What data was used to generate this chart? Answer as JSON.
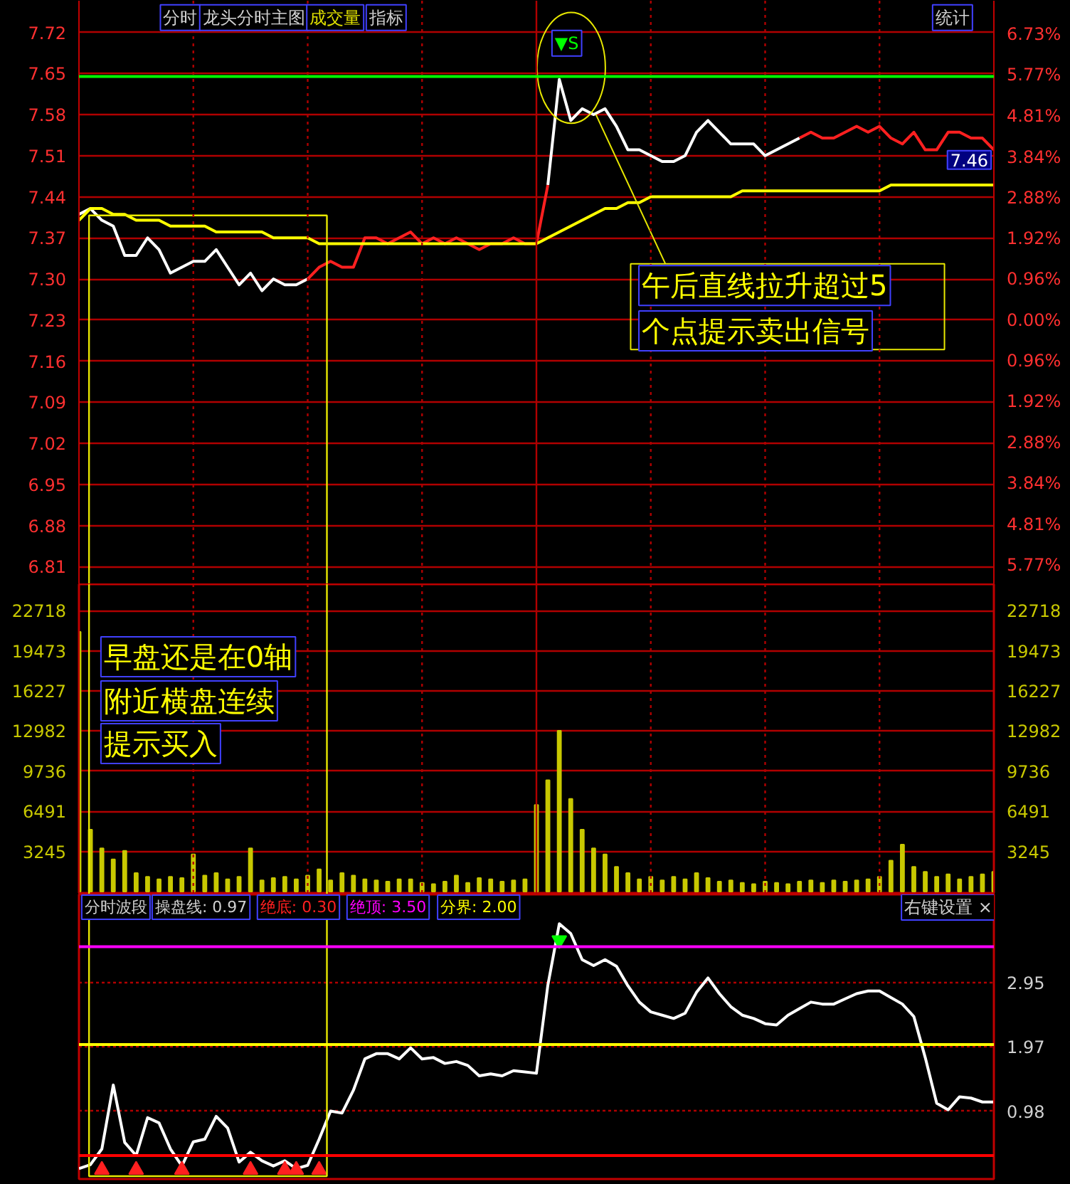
{
  "chart_data": [
    {
      "type": "line",
      "categories": [
        null,
        null,
        null,
        null,
        null,
        null,
        null,
        null,
        null,
        null,
        null,
        null,
        null,
        null,
        null,
        null,
        null,
        null,
        null,
        null,
        null,
        null,
        null,
        null,
        null,
        null,
        null,
        null,
        null,
        null,
        null,
        null,
        null,
        null,
        null,
        null,
        null,
        null,
        null,
        null,
        null,
        null,
        null,
        null,
        null,
        null,
        null,
        null,
        null,
        null,
        null,
        null,
        null,
        null,
        null,
        null,
        null,
        null,
        null,
        null,
        null,
        null,
        null,
        null,
        null,
        null,
        null,
        null,
        null,
        null,
        null,
        null,
        null,
        null,
        null,
        null,
        null,
        null,
        null,
        null,
        null
      ],
      "ylim": [
        6.78,
        7.774
      ],
      "yticks": [
        6.81,
        6.88,
        6.95,
        7.02,
        7.09,
        7.16,
        7.23,
        {
          "value": 7.3,
          "label": "7.30"
        },
        7.37,
        7.44,
        7.51,
        7.58,
        7.65,
        7.72
      ],
      "y2lim": [
        -6.22,
        7.52
      ],
      "y2ticks": [
        {
          "value": -5.77,
          "label": "5.77%"
        },
        {
          "value": -4.81,
          "label": "4.81%"
        },
        {
          "value": -3.84,
          "label": "3.84%"
        },
        {
          "value": -2.88,
          "label": "2.88%"
        },
        {
          "value": -1.92,
          "label": "1.92%"
        },
        {
          "value": -0.96,
          "label": "0.96%"
        },
        {
          "value": 0,
          "label": "0.00%"
        },
        {
          "value": 0.96,
          "label": "0.96%"
        },
        {
          "value": 1.92,
          "label": "1.92%"
        },
        {
          "value": 2.88,
          "label": "2.88%"
        },
        {
          "value": 3.84,
          "label": "3.84%"
        },
        {
          "value": 4.81,
          "label": "4.81%"
        },
        {
          "value": 5.77,
          "label": "5.77%"
        },
        {
          "value": 6.73,
          "label": "6.73%"
        }
      ],
      "tick_labels": "y",
      "grid": true,
      "series": [
        {
          "color": "#ffffff",
          "values": [
            7.41,
            7.42,
            7.4,
            7.39,
            7.34,
            7.34,
            7.37,
            7.35,
            7.31,
            7.32,
            7.33,
            7.33,
            7.35,
            7.32,
            7.29,
            7.31,
            7.28,
            7.3,
            7.29,
            7.29,
            7.3,
            null,
            null,
            null,
            null,
            null,
            null,
            null,
            null,
            null,
            null,
            null,
            null,
            null,
            null,
            null,
            null,
            null,
            null,
            null,
            null,
            7.46,
            7.64,
            7.57,
            7.59,
            7.58,
            7.59,
            7.56,
            7.52,
            7.52,
            7.51,
            7.5,
            7.5,
            7.51,
            7.55,
            7.57,
            7.55,
            7.53,
            7.53,
            7.53,
            7.51,
            7.52,
            7.53,
            7.54,
            null,
            null,
            null,
            null,
            null,
            null,
            null,
            null,
            null,
            null,
            null,
            null,
            null,
            null,
            null,
            null,
            null
          ]
        },
        {
          "color": "#ff2020",
          "values": [
            null,
            null,
            null,
            null,
            null,
            null,
            null,
            null,
            null,
            null,
            null,
            null,
            null,
            null,
            null,
            null,
            null,
            null,
            null,
            null,
            7.3,
            7.32,
            7.33,
            7.32,
            7.32,
            7.37,
            7.37,
            7.36,
            7.37,
            7.38,
            7.36,
            7.37,
            7.36,
            7.37,
            7.36,
            7.35,
            7.36,
            7.36,
            7.37,
            7.36,
            7.36,
            7.46,
            null,
            null,
            null,
            null,
            null,
            null,
            null,
            null,
            null,
            null,
            null,
            null,
            null,
            null,
            null,
            null,
            null,
            null,
            null,
            null,
            null,
            7.54,
            7.55,
            7.54,
            7.54,
            7.55,
            7.56,
            7.55,
            7.56,
            7.54,
            7.53,
            7.55,
            7.52,
            7.52,
            7.55,
            7.55,
            7.54,
            7.54,
            7.52
          ]
        },
        {
          "color": "#ffff00",
          "values": [
            7.4,
            7.42,
            7.42,
            7.41,
            7.41,
            7.4,
            7.4,
            7.4,
            7.39,
            7.39,
            7.39,
            7.39,
            7.38,
            7.38,
            7.38,
            7.38,
            7.38,
            7.37,
            7.37,
            7.37,
            7.37,
            7.36,
            7.36,
            7.36,
            7.36,
            7.36,
            7.36,
            7.36,
            7.36,
            7.36,
            7.36,
            7.36,
            7.36,
            7.36,
            7.36,
            7.36,
            7.36,
            7.36,
            7.36,
            7.36,
            7.36,
            7.37,
            7.38,
            7.39,
            7.4,
            7.41,
            7.42,
            7.42,
            7.43,
            7.43,
            7.44,
            7.44,
            7.44,
            7.44,
            7.44,
            7.44,
            7.44,
            7.44,
            7.45,
            7.45,
            7.45,
            7.45,
            7.45,
            7.45,
            7.45,
            7.45,
            7.45,
            7.45,
            7.45,
            7.45,
            7.45,
            7.46,
            7.46,
            7.46,
            7.46,
            7.46,
            7.46,
            7.46,
            7.46,
            7.46,
            7.46
          ]
        }
      ],
      "ref_lines": [
        {
          "axis": "y",
          "value": 7.645,
          "color": "#00ff00"
        }
      ],
      "annotations": [
        "分时",
        "龙头分时主图",
        "成交量",
        "指标",
        "统计",
        "▼S",
        "午后直线拉升超过5",
        "个点提示卖出信号",
        "7.46"
      ]
    },
    {
      "type": "bar",
      "categories": [
        null,
        null,
        null,
        null,
        null,
        null,
        null,
        null,
        null,
        null,
        null,
        null,
        null,
        null,
        null,
        null,
        null,
        null,
        null,
        null,
        null,
        null,
        null,
        null,
        null,
        null,
        null,
        null,
        null,
        null,
        null,
        null,
        null,
        null,
        null,
        null,
        null,
        null,
        null,
        null,
        null,
        null,
        null,
        null,
        null,
        null,
        null,
        null,
        null,
        null,
        null,
        null,
        null,
        null,
        null,
        null,
        null,
        null,
        null,
        null,
        null,
        null,
        null,
        null,
        null,
        null,
        null,
        null,
        null,
        null,
        null,
        null,
        null,
        null,
        null,
        null,
        null,
        null,
        null,
        null,
        null
      ],
      "ylim": [
        -230,
        24860
      ],
      "yticks": [
        3245,
        6491,
        9736,
        12982,
        16227,
        19473,
        22718
      ],
      "y2lim": [
        -230,
        24860
      ],
      "y2ticks": [
        3245,
        6491,
        9736,
        12982,
        16227,
        19473,
        22718
      ],
      "tick_labels": "y",
      "grid": true,
      "series": [
        {
          "color": "#c8c800",
          "values": [
            21000,
            5000,
            3500,
            2600,
            3300,
            1500,
            1200,
            1000,
            1200,
            1100,
            3000,
            1300,
            1500,
            1000,
            1200,
            3500,
            900,
            1100,
            1200,
            1000,
            1300,
            1800,
            900,
            1500,
            1300,
            1000,
            900,
            800,
            1000,
            1000,
            700,
            600,
            800,
            1300,
            700,
            1100,
            1000,
            800,
            900,
            1000,
            7000,
            9000,
            13000,
            7500,
            5000,
            3500,
            3000,
            2000,
            1500,
            1000,
            1200,
            900,
            1200,
            1000,
            1500,
            1100,
            800,
            900,
            700,
            600,
            800,
            700,
            600,
            800,
            900,
            700,
            900,
            800,
            900,
            1000,
            1200,
            2500,
            3800,
            2000,
            1600,
            1200,
            1400,
            1000,
            1200,
            1400,
            1600
          ]
        }
      ],
      "annotations": [
        "早盘还是在0轴",
        "附近横盘连续",
        "提示买入"
      ]
    },
    {
      "type": "line",
      "categories": [
        null,
        null,
        null,
        null,
        null,
        null,
        null,
        null,
        null,
        null,
        null,
        null,
        null,
        null,
        null,
        null,
        null,
        null,
        null,
        null,
        null,
        null,
        null,
        null,
        null,
        null,
        null,
        null,
        null,
        null,
        null,
        null,
        null,
        null,
        null,
        null,
        null,
        null,
        null,
        null,
        null,
        null,
        null,
        null,
        null,
        null,
        null,
        null,
        null,
        null,
        null,
        null,
        null,
        null,
        null,
        null,
        null,
        null,
        null,
        null,
        null,
        null,
        null,
        null,
        null,
        null,
        null,
        null,
        null,
        null,
        null,
        null,
        null,
        null,
        null,
        null,
        null,
        null,
        null,
        null,
        null
      ],
      "y2lim": [
        -0.06,
        4.3
      ],
      "y2ticks": [
        0.98,
        1.97,
        2.95
      ],
      "tick_labels": "y",
      "grid": "y",
      "series": [
        {
          "axis": "y2",
          "color": "#ffffff",
          "values": [
            0.1,
            0.16,
            0.4,
            1.38,
            0.5,
            0.3,
            0.88,
            0.8,
            0.4,
            0.14,
            0.51,
            0.55,
            0.9,
            0.72,
            0.2,
            0.35,
            0.22,
            0.14,
            0.22,
            0.1,
            0.15,
            0.55,
            0.98,
            0.95,
            1.3,
            1.78,
            1.86,
            1.86,
            1.78,
            1.95,
            1.78,
            1.8,
            1.71,
            1.74,
            1.68,
            1.52,
            1.55,
            1.52,
            1.6,
            1.58,
            1.56,
            2.91,
            3.85,
            3.7,
            3.3,
            3.21,
            3.3,
            3.2,
            2.9,
            2.65,
            2.5,
            2.45,
            2.4,
            2.48,
            2.8,
            3.02,
            2.78,
            2.58,
            2.45,
            2.4,
            2.32,
            2.3,
            2.45,
            2.55,
            2.65,
            2.62,
            2.62,
            2.7,
            2.78,
            2.82,
            2.82,
            2.72,
            2.62,
            2.43,
            1.8,
            1.1,
            1.0,
            1.2,
            1.18,
            1.12,
            1.12
          ]
        },
        {
          "axis": "y2",
          "type": "scatter",
          "marker": "triangle",
          "color": "#ff2020",
          "values": [
            null,
            null,
            0.08,
            null,
            null,
            0.08,
            null,
            null,
            null,
            0.08,
            null,
            null,
            null,
            null,
            null,
            0.08,
            null,
            null,
            0.08,
            0.08,
            null,
            0.08,
            null,
            null,
            null,
            null,
            null,
            null,
            null,
            null,
            null,
            null,
            null,
            null,
            null,
            null,
            null,
            null,
            null,
            null,
            null,
            null,
            null,
            null,
            null,
            null,
            null,
            null,
            null,
            null,
            null,
            null,
            null,
            null,
            null,
            null,
            null,
            null,
            null,
            null,
            null,
            null,
            null,
            null,
            null,
            null,
            null,
            null,
            null,
            null,
            null,
            null,
            null,
            null,
            null,
            null,
            null,
            null,
            null,
            null,
            null
          ]
        },
        {
          "axis": "y2",
          "type": "scatter",
          "marker": "triangle_down",
          "color": "#00ff00",
          "values": [
            null,
            null,
            null,
            null,
            null,
            null,
            null,
            null,
            null,
            null,
            null,
            null,
            null,
            null,
            null,
            null,
            null,
            null,
            null,
            null,
            null,
            null,
            null,
            null,
            null,
            null,
            null,
            null,
            null,
            null,
            null,
            null,
            null,
            null,
            null,
            null,
            null,
            null,
            null,
            null,
            null,
            null,
            3.6,
            null,
            null,
            null,
            null,
            null,
            null,
            null,
            null,
            null,
            null,
            null,
            null,
            null,
            null,
            null,
            null,
            null,
            null,
            null,
            null,
            null,
            null,
            null,
            null,
            null,
            null,
            null,
            null,
            null,
            null,
            null,
            null,
            null,
            null,
            null,
            null,
            null,
            null
          ]
        }
      ],
      "ref_lines": [
        {
          "axis": "y2",
          "value": 3.5,
          "color": "#ff00ff"
        },
        {
          "axis": "y2",
          "value": 2.0,
          "color": "#ffff00"
        },
        {
          "axis": "y2",
          "value": 0.3,
          "color": "#ff0000"
        }
      ],
      "annotations": [
        "分时波段",
        "操盘线: 0.97",
        "绝底: 0.30",
        "绝顶: 3.50",
        "分界: 2.00",
        "右键设置 ×"
      ]
    }
  ]
}
